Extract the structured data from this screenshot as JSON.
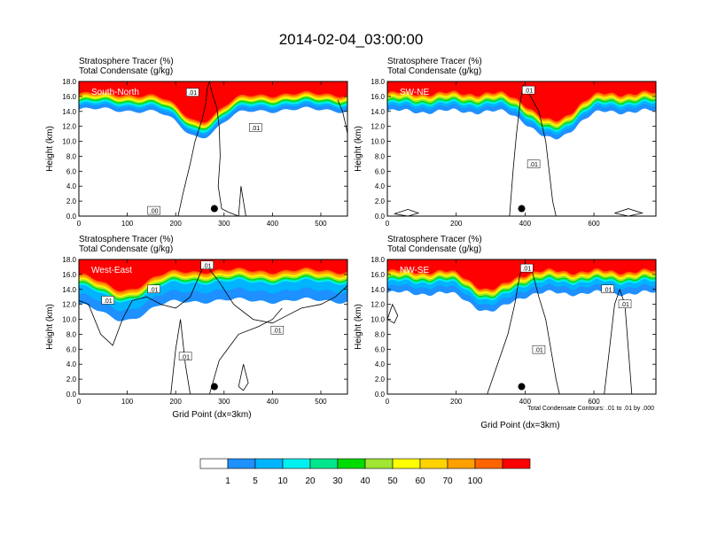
{
  "figure": {
    "title": "2014-02-04_03:00:00",
    "contour_note": "Total Condensate Contours: .01 to .01 by .000",
    "xlabel": "Grid Point (dx=3km)"
  },
  "colorbar": {
    "colors": [
      "#ffffff",
      "#1e90ff",
      "#00b4ff",
      "#00f0f0",
      "#00e68c",
      "#00dc00",
      "#a0e632",
      "#ffff00",
      "#ffd200",
      "#ffa000",
      "#ff6400",
      "#ff0000"
    ],
    "labels": [
      "1",
      "5",
      "10",
      "20",
      "30",
      "40",
      "50",
      "60",
      "70",
      "100"
    ]
  },
  "chart_data": [
    {
      "type": "heatmap",
      "panel_label": "South-North",
      "title_line1": "Stratosphere Tracer   (%)",
      "title_line2": "Total Condensate   (g/kg)",
      "ylabel": "Height (km)",
      "xlabel": "",
      "ylim": [
        0,
        18
      ],
      "xlim": [
        0,
        555
      ],
      "yticks": [
        "0.0",
        "2.0",
        "4.0",
        "6.0",
        "8.0",
        "10.0",
        "12.0",
        "14.0",
        "16.0",
        "18.0"
      ],
      "xticks": [
        0,
        100,
        200,
        300,
        400,
        500
      ],
      "shading": {
        "red_above_km": 16.3,
        "orange_above_km": 15.8,
        "green_above_km": 15.2,
        "blue_base_km": 14.2,
        "dip_x": 250,
        "dip_depth_km": 3.5,
        "dip_width": 60
      },
      "contours": [
        {
          "x": [
            205,
            215,
            230,
            240,
            255,
            262,
            265,
            270,
            275,
            285,
            290,
            292,
            288,
            295,
            310,
            330
          ],
          "y": [
            0.0,
            3.0,
            7.0,
            10.0,
            13.0,
            15.0,
            17.0,
            18.0,
            16.5,
            14.5,
            12.0,
            8.0,
            4.0,
            1.0,
            0.5,
            0.0
          ]
        },
        {
          "x": [
            330,
            335,
            340,
            345
          ],
          "y": [
            0.0,
            4.0,
            2.0,
            0.0
          ]
        },
        {
          "x": [
            535,
            545,
            552,
            555
          ],
          "y": [
            15.5,
            14.0,
            12.0,
            11.0
          ]
        }
      ],
      "contour_labels": [
        {
          "text": ".01",
          "x": 235,
          "y": 16.5
        },
        {
          "text": ".01",
          "x": 365,
          "y": 11.8
        },
        {
          "text": ".00",
          "x": 155,
          "y": 0.7
        }
      ],
      "marker": {
        "x": 280,
        "y": 1.0
      }
    },
    {
      "type": "heatmap",
      "panel_label": "SW-NE",
      "title_line1": "Stratosphere Tracer   (%)",
      "title_line2": "Total Condensate   (g/kg)",
      "ylabel": "Height (km)",
      "xlabel": "",
      "ylim": [
        0,
        18
      ],
      "xlim": [
        0,
        780
      ],
      "yticks": [
        "0.0",
        "2.0",
        "4.0",
        "6.0",
        "8.0",
        "10.0",
        "12.0",
        "14.0",
        "16.0",
        "18.0"
      ],
      "xticks": [
        0,
        200,
        400,
        600
      ],
      "shading": {
        "red_above_km": 16.4,
        "orange_above_km": 15.9,
        "green_above_km": 15.2,
        "blue_base_km": 14.0,
        "dip_x": 480,
        "dip_depth_km": 3.8,
        "dip_width": 80
      },
      "contours": [
        {
          "x": [
            355,
            365,
            375,
            385,
            395,
            410,
            440,
            460,
            470,
            480,
            490
          ],
          "y": [
            0.0,
            6.0,
            11.0,
            15.0,
            17.5,
            16.5,
            14.0,
            10.0,
            6.0,
            2.0,
            0.0
          ]
        },
        {
          "x": [
            20,
            60,
            90,
            60,
            20
          ],
          "y": [
            0.3,
            0.9,
            0.4,
            0.0,
            0.3
          ]
        },
        {
          "x": [
            660,
            700,
            740,
            700,
            660
          ],
          "y": [
            0.4,
            1.0,
            0.4,
            0.0,
            0.4
          ]
        }
      ],
      "contour_labels": [
        {
          "text": ".01",
          "x": 410,
          "y": 16.8
        },
        {
          "text": ".01",
          "x": 425,
          "y": 6.9
        }
      ],
      "marker": {
        "x": 390,
        "y": 1.0
      }
    },
    {
      "type": "heatmap",
      "panel_label": "West-East",
      "title_line1": "Stratosphere Tracer   (%)",
      "title_line2": "Total Condensate   (g/kg)",
      "ylabel": "Height (km)",
      "xlabel": "",
      "ylim": [
        0,
        18
      ],
      "xlim": [
        0,
        555
      ],
      "yticks": [
        "0.0",
        "2.0",
        "4.0",
        "6.0",
        "8.0",
        "10.0",
        "12.0",
        "14.0",
        "16.0",
        "18.0"
      ],
      "xticks": [
        0,
        100,
        200,
        300,
        400,
        500
      ],
      "shading": {
        "red_above_km": 16.5,
        "orange_above_km": 15.9,
        "green_above_km": 15.2,
        "blue_base_km": 12.5,
        "dip_x": 90,
        "dip_depth_km": 2.5,
        "dip_width": 70
      },
      "contours": [
        {
          "x": [
            0,
            20,
            45,
            70,
            90,
            110,
            140,
            170,
            200,
            230,
            260,
            290,
            320,
            360,
            400,
            430,
            460,
            500,
            530,
            555
          ],
          "y": [
            12.5,
            12.0,
            8.0,
            6.5,
            10.0,
            12.5,
            13.0,
            12.0,
            11.5,
            13.0,
            17.5,
            15.0,
            12.0,
            10.0,
            9.5,
            10.5,
            11.5,
            12.0,
            13.0,
            14.5
          ]
        },
        {
          "x": [
            190,
            200,
            210,
            220,
            230
          ],
          "y": [
            0.0,
            6.0,
            10.0,
            4.0,
            0.0
          ]
        },
        {
          "x": [
            270,
            290,
            330,
            370,
            400,
            420
          ],
          "y": [
            0.0,
            4.5,
            8.0,
            9.0,
            10.0,
            11.5
          ]
        },
        {
          "x": [
            330,
            340,
            350,
            340,
            330
          ],
          "y": [
            1.0,
            4.0,
            1.5,
            0.5,
            1.0
          ]
        }
      ],
      "contour_labels": [
        {
          "text": ".01",
          "x": 265,
          "y": 17.2
        },
        {
          "text": ".01",
          "x": 155,
          "y": 14.0
        },
        {
          "text": ".01",
          "x": 60,
          "y": 12.5
        },
        {
          "text": ".01",
          "x": 410,
          "y": 8.5
        },
        {
          "text": ".01",
          "x": 220,
          "y": 5.0
        }
      ],
      "marker": {
        "x": 280,
        "y": 1.0
      }
    },
    {
      "type": "heatmap",
      "panel_label": "NW-SE",
      "title_line1": "Stratosphere Tracer   (%)",
      "title_line2": "Total Condensate   (g/kg)",
      "ylabel": "Height (km)",
      "xlabel": "Grid Point (dx=3km)",
      "ylim": [
        0,
        18
      ],
      "xlim": [
        0,
        780
      ],
      "yticks": [
        "0.0",
        "2.0",
        "4.0",
        "6.0",
        "8.0",
        "10.0",
        "12.0",
        "14.0",
        "16.0",
        "18.0"
      ],
      "xticks": [
        0,
        200,
        400,
        600
      ],
      "shading": {
        "red_above_km": 16.4,
        "orange_above_km": 15.9,
        "green_above_km": 15.2,
        "blue_base_km": 13.5,
        "dip_x": 300,
        "dip_depth_km": 2.5,
        "dip_width": 70
      },
      "contours": [
        {
          "x": [
            290,
            320,
            350,
            370,
            385,
            400,
            420,
            440,
            460,
            475,
            490,
            500
          ],
          "y": [
            0.0,
            4.0,
            8.0,
            12.0,
            16.0,
            17.5,
            16.5,
            13.0,
            10.0,
            6.0,
            2.0,
            0.0
          ]
        },
        {
          "x": [
            630,
            645,
            660,
            675,
            690,
            700,
            710
          ],
          "y": [
            0.0,
            6.0,
            12.0,
            14.0,
            12.0,
            6.0,
            0.0
          ]
        },
        {
          "x": [
            0,
            15,
            30,
            20,
            0
          ],
          "y": [
            10.0,
            12.0,
            10.5,
            9.5,
            10.0
          ]
        }
      ],
      "contour_labels": [
        {
          "text": ".01",
          "x": 405,
          "y": 16.8
        },
        {
          "text": ".01",
          "x": 640,
          "y": 14.0
        },
        {
          "text": ".01",
          "x": 690,
          "y": 12.0
        },
        {
          "text": ".01",
          "x": 440,
          "y": 5.9
        }
      ],
      "marker": {
        "x": 390,
        "y": 1.0
      }
    }
  ]
}
